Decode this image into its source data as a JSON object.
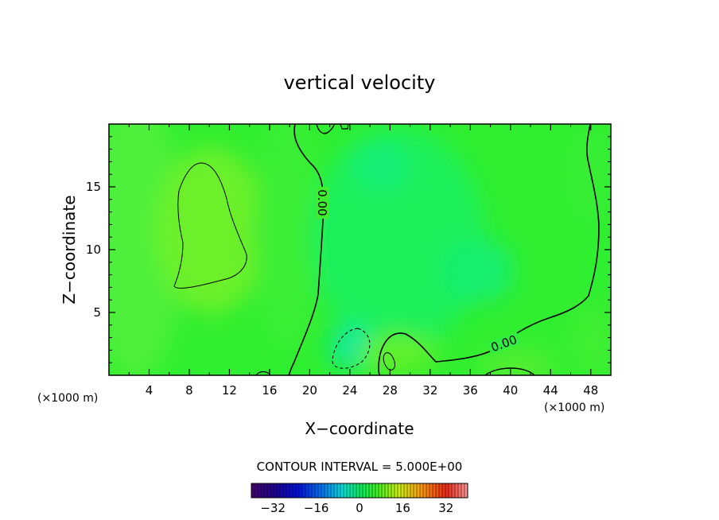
{
  "chart_data": {
    "type": "contour",
    "title": "vertical velocity",
    "xlabel": "X−coordinate",
    "ylabel": "Z−coordinate",
    "x_unit_label": "(×1000 m)",
    "y_unit_label": "(×1000 m)",
    "xlim": [
      0,
      50
    ],
    "ylim": [
      0,
      20
    ],
    "x_ticks": [
      4,
      8,
      12,
      16,
      20,
      24,
      28,
      32,
      36,
      40,
      44,
      48
    ],
    "y_ticks": [
      5,
      10,
      15
    ],
    "contour_interval_text": "CONTOUR INTERVAL = 5.000E+00",
    "contour_interval": 5.0,
    "contour_labels": [
      {
        "text": "0.00",
        "x": 21.8,
        "z": 14.2,
        "rotation": 90
      },
      {
        "text": "0.00",
        "x": 39.4,
        "z": 2.5,
        "rotation": -20
      }
    ],
    "colorbar": {
      "range": [
        -40,
        40
      ],
      "ticks": [
        -32,
        -16,
        0,
        16,
        32
      ],
      "tick_labels": [
        "−32",
        "−16",
        "0",
        "16",
        "32"
      ]
    },
    "field_description_values": {
      "background_min": -3,
      "background_max": 4,
      "positive_region_peak_x": 9,
      "positive_region_peak_z": 11,
      "negative_region_center_x": 24,
      "negative_region_center_z": 2
    }
  }
}
